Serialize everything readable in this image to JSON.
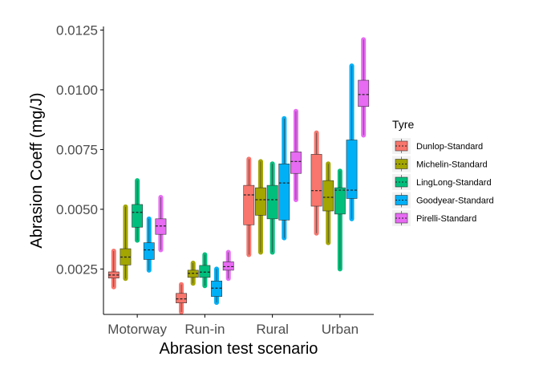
{
  "chart_data": {
    "type": "box",
    "xlabel": "Abrasion test scenario",
    "ylabel": "Abrasion Coeff (mg/J)",
    "ylim": [
      0.0006,
      0.01265
    ],
    "y_ticks": [
      0.0025,
      0.005,
      0.0075,
      0.01,
      0.0125
    ],
    "y_tick_labels": [
      "0.0025",
      "0.0050",
      "0.0075",
      "0.0100",
      "0.0125"
    ],
    "categories": [
      "Motorway",
      "Run-in",
      "Rural",
      "Urban"
    ],
    "legend": {
      "title": "Tyre",
      "position": "right"
    },
    "grid": false,
    "series": [
      {
        "name": "Dunlop-Standard",
        "color": "#F8766D",
        "boxes": [
          {
            "min": 0.00175,
            "q1": 0.00212,
            "median": 0.00225,
            "q3": 0.00238,
            "max": 0.00325
          },
          {
            "min": 0.0007,
            "q1": 0.00108,
            "median": 0.00125,
            "q3": 0.00148,
            "max": 0.00185
          },
          {
            "min": 0.0031,
            "q1": 0.00435,
            "median": 0.0056,
            "q3": 0.006,
            "max": 0.0071
          },
          {
            "min": 0.004,
            "q1": 0.00513,
            "median": 0.00578,
            "q3": 0.0073,
            "max": 0.0082
          }
        ]
      },
      {
        "name": "Michelin-Standard",
        "color": "#A3A500",
        "boxes": [
          {
            "min": 0.0021,
            "q1": 0.00267,
            "median": 0.003,
            "q3": 0.00335,
            "max": 0.0051
          },
          {
            "min": 0.0019,
            "q1": 0.00215,
            "median": 0.00232,
            "q3": 0.00245,
            "max": 0.00275
          },
          {
            "min": 0.0032,
            "q1": 0.00475,
            "median": 0.0054,
            "q3": 0.0059,
            "max": 0.007
          },
          {
            "min": 0.0036,
            "q1": 0.00493,
            "median": 0.0055,
            "q3": 0.0062,
            "max": 0.0069
          }
        ]
      },
      {
        "name": "LingLong-Standard",
        "color": "#00BF7D",
        "boxes": [
          {
            "min": 0.0037,
            "q1": 0.00425,
            "median": 0.00487,
            "q3": 0.0052,
            "max": 0.0062
          },
          {
            "min": 0.0018,
            "q1": 0.00215,
            "median": 0.00237,
            "q3": 0.00265,
            "max": 0.0031
          },
          {
            "min": 0.0032,
            "q1": 0.0046,
            "median": 0.0054,
            "q3": 0.006,
            "max": 0.0069
          },
          {
            "min": 0.0025,
            "q1": 0.0048,
            "median": 0.0058,
            "q3": 0.0059,
            "max": 0.0066
          }
        ]
      },
      {
        "name": "Goodyear-Standard",
        "color": "#00B0F6",
        "boxes": [
          {
            "min": 0.00245,
            "q1": 0.0029,
            "median": 0.0033,
            "q3": 0.0036,
            "max": 0.0046
          },
          {
            "min": 0.0011,
            "q1": 0.00135,
            "median": 0.0017,
            "q3": 0.002,
            "max": 0.0025
          },
          {
            "min": 0.0038,
            "q1": 0.00455,
            "median": 0.0061,
            "q3": 0.0069,
            "max": 0.0088
          },
          {
            "min": 0.0046,
            "q1": 0.00545,
            "median": 0.0058,
            "q3": 0.0079,
            "max": 0.011
          }
        ]
      },
      {
        "name": "Pirelli-Standard",
        "color": "#E76BF3",
        "boxes": [
          {
            "min": 0.0033,
            "q1": 0.00395,
            "median": 0.0043,
            "q3": 0.0046,
            "max": 0.0055
          },
          {
            "min": 0.0021,
            "q1": 0.00245,
            "median": 0.0026,
            "q3": 0.0028,
            "max": 0.0032
          },
          {
            "min": 0.0054,
            "q1": 0.0065,
            "median": 0.007,
            "q3": 0.0074,
            "max": 0.0091
          },
          {
            "min": 0.0081,
            "q1": 0.0093,
            "median": 0.0098,
            "q3": 0.0104,
            "max": 0.0121
          }
        ]
      }
    ]
  }
}
